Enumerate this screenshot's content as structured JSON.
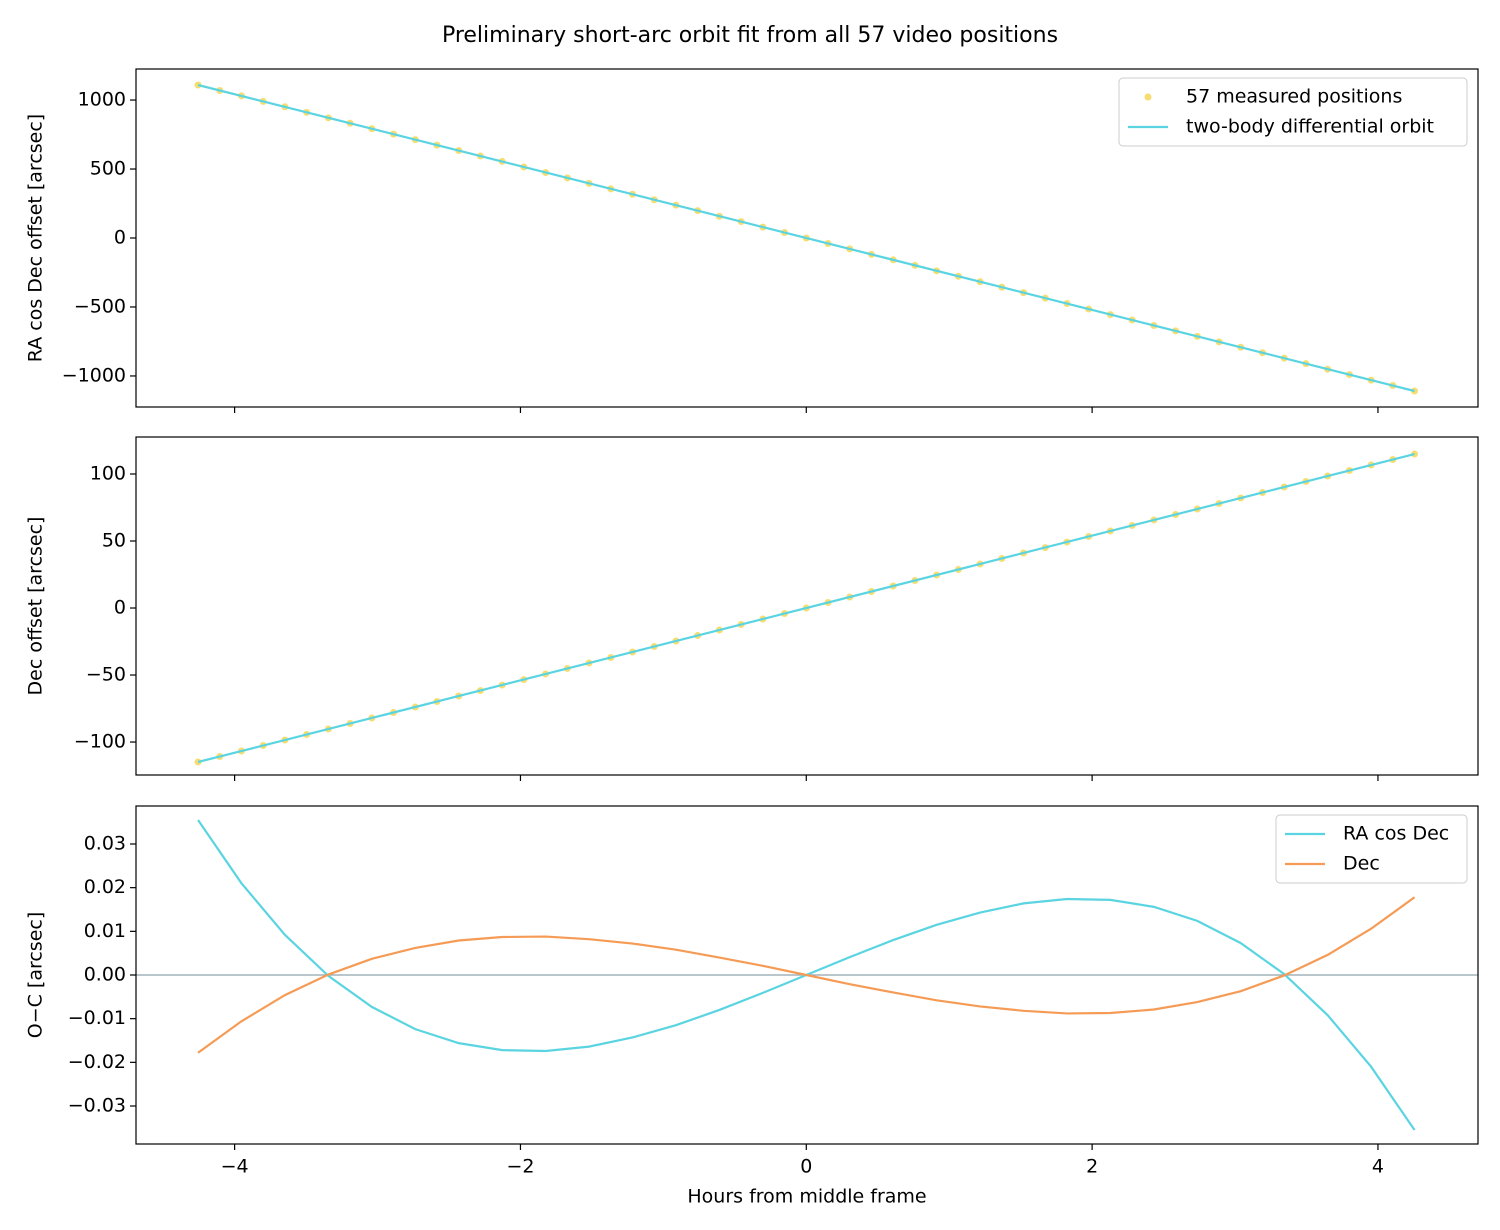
{
  "title": "Preliminary short-arc orbit fit from all 57 video positions",
  "chart_data": [
    {
      "type": "line",
      "ylabel": "RA cos Dec offset [arcsec]",
      "legend": "upper right",
      "xlim": [
        -4.69,
        4.7
      ],
      "ylim": [
        -1225,
        1225
      ],
      "yticks": [
        {
          "value": -1000,
          "label": "−1000"
        },
        {
          "value": -500,
          "label": "−500"
        },
        0,
        500,
        1000
      ],
      "x": [
        -4.256,
        -4.104,
        -3.952,
        -3.8,
        -3.648,
        -3.496,
        -3.344,
        -3.192,
        -3.04,
        -2.888,
        -2.736,
        -2.584,
        -2.432,
        -2.28,
        -2.128,
        -1.976,
        -1.824,
        -1.672,
        -1.52,
        -1.368,
        -1.216,
        -1.064,
        -0.912,
        -0.76,
        -0.608,
        -0.456,
        -0.304,
        -0.152,
        0,
        0.152,
        0.304,
        0.456,
        0.608,
        0.76,
        0.912,
        1.064,
        1.216,
        1.368,
        1.52,
        1.672,
        1.824,
        1.976,
        2.128,
        2.28,
        2.432,
        2.584,
        2.736,
        2.888,
        3.04,
        3.192,
        3.344,
        3.496,
        3.648,
        3.8,
        3.952,
        4.104,
        4.256
      ],
      "series": [
        {
          "name": "57 measured positions",
          "style": "points",
          "color": "#f7dd70",
          "values": [
            1109,
            1069,
            1030,
            990,
            951,
            911,
            871,
            832,
            792,
            753,
            713,
            673,
            634,
            594,
            555,
            515,
            475,
            436,
            396,
            356,
            317,
            277,
            238,
            198,
            158,
            119,
            79,
            40,
            0,
            -40,
            -79,
            -119,
            -158,
            -198,
            -238,
            -277,
            -317,
            -356,
            -396,
            -436,
            -475,
            -515,
            -555,
            -594,
            -634,
            -673,
            -713,
            -753,
            -792,
            -832,
            -871,
            -911,
            -951,
            -990,
            -1030,
            -1069,
            -1109
          ]
        },
        {
          "name": "two-body differential orbit",
          "style": "line",
          "color": "#5bd4e2",
          "x": [
            -4.256,
            4.256
          ],
          "values": [
            1109,
            -1109
          ]
        }
      ]
    },
    {
      "type": "line",
      "ylabel": "Dec offset [arcsec]",
      "xlim": [
        -4.69,
        4.7
      ],
      "ylim": [
        -124.6,
        127.6
      ],
      "yticks": [
        {
          "value": -100,
          "label": "−100"
        },
        {
          "value": -50,
          "label": "−50"
        },
        0,
        50,
        100
      ],
      "x": [
        -4.256,
        -4.104,
        -3.952,
        -3.8,
        -3.648,
        -3.496,
        -3.344,
        -3.192,
        -3.04,
        -2.888,
        -2.736,
        -2.584,
        -2.432,
        -2.28,
        -2.128,
        -1.976,
        -1.824,
        -1.672,
        -1.52,
        -1.368,
        -1.216,
        -1.064,
        -0.912,
        -0.76,
        -0.608,
        -0.456,
        -0.304,
        -0.152,
        0,
        0.152,
        0.304,
        0.456,
        0.608,
        0.76,
        0.912,
        1.064,
        1.216,
        1.368,
        1.52,
        1.672,
        1.824,
        1.976,
        2.128,
        2.28,
        2.432,
        2.584,
        2.736,
        2.888,
        3.04,
        3.192,
        3.344,
        3.496,
        3.648,
        3.8,
        3.952,
        4.104,
        4.256
      ],
      "series": [
        {
          "style": "points",
          "color": "#f7dd70",
          "values": [
            -114.9,
            -110.8,
            -106.7,
            -102.6,
            -98.5,
            -94.4,
            -90.3,
            -86.2,
            -82.1,
            -78.0,
            -73.9,
            -69.8,
            -65.7,
            -61.6,
            -57.5,
            -53.4,
            -49.2,
            -45.1,
            -41.0,
            -36.9,
            -32.8,
            -28.7,
            -24.6,
            -20.5,
            -16.4,
            -12.3,
            -8.2,
            -4.1,
            0,
            4.1,
            8.2,
            12.3,
            16.4,
            20.5,
            24.6,
            28.7,
            32.8,
            36.9,
            41.0,
            45.1,
            49.2,
            53.4,
            57.5,
            61.6,
            65.7,
            69.8,
            73.9,
            78.0,
            82.1,
            86.2,
            90.3,
            94.4,
            98.5,
            102.6,
            106.7,
            110.8,
            114.9
          ]
        },
        {
          "style": "line",
          "color": "#5bd4e2",
          "x": [
            -4.256,
            4.256
          ],
          "values": [
            -114.9,
            114.9
          ]
        }
      ]
    },
    {
      "type": "line",
      "ylabel": "O−C [arcsec]",
      "xlabel": "Hours from middle frame",
      "legend": "upper right",
      "zero_line": true,
      "xlim": [
        -4.69,
        4.7
      ],
      "ylim": [
        -0.0387,
        0.0387
      ],
      "xticks": [
        {
          "value": -4,
          "label": "−4"
        },
        {
          "value": -2,
          "label": "−2"
        },
        0,
        2,
        4
      ],
      "yticks": [
        {
          "value": -0.03,
          "label": "−0.03"
        },
        {
          "value": -0.02,
          "label": "−0.02"
        },
        {
          "value": -0.01,
          "label": "−0.01"
        },
        {
          "value": 0,
          "label": "0.00"
        },
        0.01,
        0.02,
        0.03
      ],
      "x": [
        -4.256,
        -3.952,
        -3.648,
        -3.344,
        -3.04,
        -2.736,
        -2.432,
        -2.128,
        -1.824,
        -1.52,
        -1.216,
        -0.912,
        -0.608,
        -0.304,
        0,
        0.304,
        0.608,
        0.912,
        1.216,
        1.52,
        1.824,
        2.128,
        2.432,
        2.736,
        3.04,
        3.344,
        3.648,
        3.952,
        4.256
      ],
      "series": [
        {
          "name": "RA cos Dec",
          "style": "line",
          "color": "#5bd4e2",
          "values": [
            0.0355,
            0.021,
            0.0092,
            -0.0002,
            -0.0073,
            -0.0124,
            -0.0156,
            -0.0172,
            -0.0174,
            -0.0164,
            -0.0143,
            -0.0115,
            -0.008,
            -0.0041,
            0,
            0.0041,
            0.008,
            0.0115,
            0.0143,
            0.0164,
            0.0174,
            0.0172,
            0.0156,
            0.0124,
            0.0073,
            0.0002,
            -0.0092,
            -0.021,
            -0.0355
          ]
        },
        {
          "name": "Dec",
          "style": "line",
          "color": "#f59b55",
          "values": [
            -0.0178,
            -0.0106,
            -0.0046,
            0.0001,
            0.0037,
            0.0062,
            0.0079,
            0.0087,
            0.0088,
            0.0082,
            0.0072,
            0.0058,
            0.004,
            0.0021,
            0,
            -0.0021,
            -0.004,
            -0.0058,
            -0.0072,
            -0.0082,
            -0.0088,
            -0.0087,
            -0.0079,
            -0.0062,
            -0.0037,
            -0.0001,
            0.0046,
            0.0106,
            0.0178
          ]
        }
      ]
    }
  ]
}
